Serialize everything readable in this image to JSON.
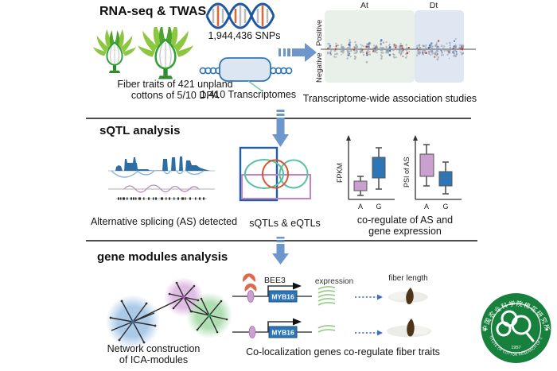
{
  "top": {
    "title": "RNA-seq & TWAS",
    "cotton_caption": [
      "Fiber traits of  421 unpland",
      "cottons of 5/10 DPA"
    ],
    "snps_label": "1,944,436 SNPs",
    "transcriptomes_label": "1,410 Transcriptomes",
    "twas_plot": {
      "panel_left_label": "At",
      "panel_right_label": "Dt",
      "y_label_positive": "Positive",
      "y_label_negative": "Negative",
      "caption": "Transcriptome-wide association studies"
    }
  },
  "middle": {
    "title": "sQTL analysis",
    "as_caption": "Alternative splicing (AS) detected",
    "venn_caption": "sQTLs & eQTLs",
    "boxplots": {
      "left_y_label": "FPKM",
      "right_y_label": "PSI of AS",
      "x_tick_a": "A",
      "x_tick_g": "G",
      "caption": [
        "co-regulate of AS and",
        "gene expression"
      ]
    }
  },
  "bottom": {
    "title": "gene modules analysis",
    "network_caption": [
      "Network construction",
      "of ICA-modules"
    ],
    "bee3_label": "BEE3",
    "gene_box_label": "MYB16",
    "expression_label": "expression",
    "fiber_length_label": "fiber length",
    "caption": "Co-localization genes co-regulate fiber traits"
  },
  "logo": {
    "chinese_name": "中国农业科学院棉花研究所",
    "english_name": "INSTITUTE OF COTTON RESEARCH OF CAAS",
    "year": "1957"
  },
  "colors": {
    "arrow_blue": "#6d97cc",
    "panel_at": "#e9f0ea",
    "panel_dt": "#dfe7f2",
    "box_blue": "#2e75b6",
    "box_pink": "#c9a0cf",
    "venn_green": "#57c1a4",
    "venn_orange": "#d85430",
    "logo_green": "#17803c"
  }
}
